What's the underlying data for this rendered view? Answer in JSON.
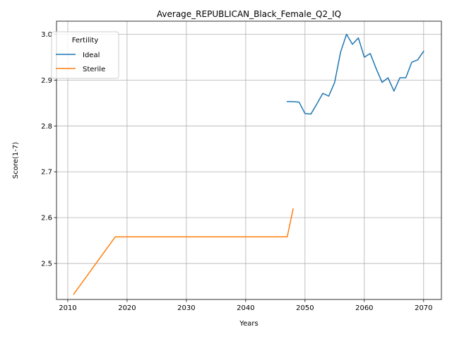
{
  "chart_data": {
    "type": "line",
    "title": "Average_REPUBLICAN_Black_Female_Q2_IQ",
    "xlabel": "Years",
    "ylabel": "Score(1-7)",
    "xlim": [
      2008.1,
      2073.0
    ],
    "ylim": [
      2.4215,
      3.0285
    ],
    "xticks": [
      2010,
      2020,
      2030,
      2040,
      2050,
      2060,
      2070
    ],
    "yticks": [
      2.5,
      2.6,
      2.7,
      2.8,
      2.9,
      3.0
    ],
    "xtick_labels": [
      "2010",
      "2020",
      "2030",
      "2040",
      "2050",
      "2060",
      "2070"
    ],
    "ytick_labels": [
      "2.5",
      "2.6",
      "2.7",
      "2.8",
      "2.9",
      "3.0"
    ],
    "grid": true,
    "legend": {
      "title": "Fertility",
      "placement": "top-left"
    },
    "series": [
      {
        "name": "Ideal",
        "color": "#1f77b4",
        "x": [
          2047,
          2048,
          2049,
          2050,
          2051,
          2052,
          2053,
          2054,
          2055,
          2056,
          2057,
          2058,
          2059,
          2060,
          2061,
          2062,
          2063,
          2064,
          2065,
          2066,
          2067,
          2068,
          2069,
          2070
        ],
        "y": [
          2.853,
          2.853,
          2.852,
          2.827,
          2.826,
          2.848,
          2.871,
          2.865,
          2.895,
          2.961,
          3.0,
          2.978,
          2.992,
          2.95,
          2.958,
          2.925,
          2.895,
          2.905,
          2.876,
          2.905,
          2.905,
          2.939,
          2.944,
          2.963
        ]
      },
      {
        "name": "Sterile",
        "color": "#ff7f0e",
        "x": [
          2011,
          2018,
          2020,
          2030,
          2040,
          2047,
          2048
        ],
        "y": [
          2.433,
          2.558,
          2.558,
          2.558,
          2.558,
          2.558,
          2.619
        ]
      }
    ]
  }
}
